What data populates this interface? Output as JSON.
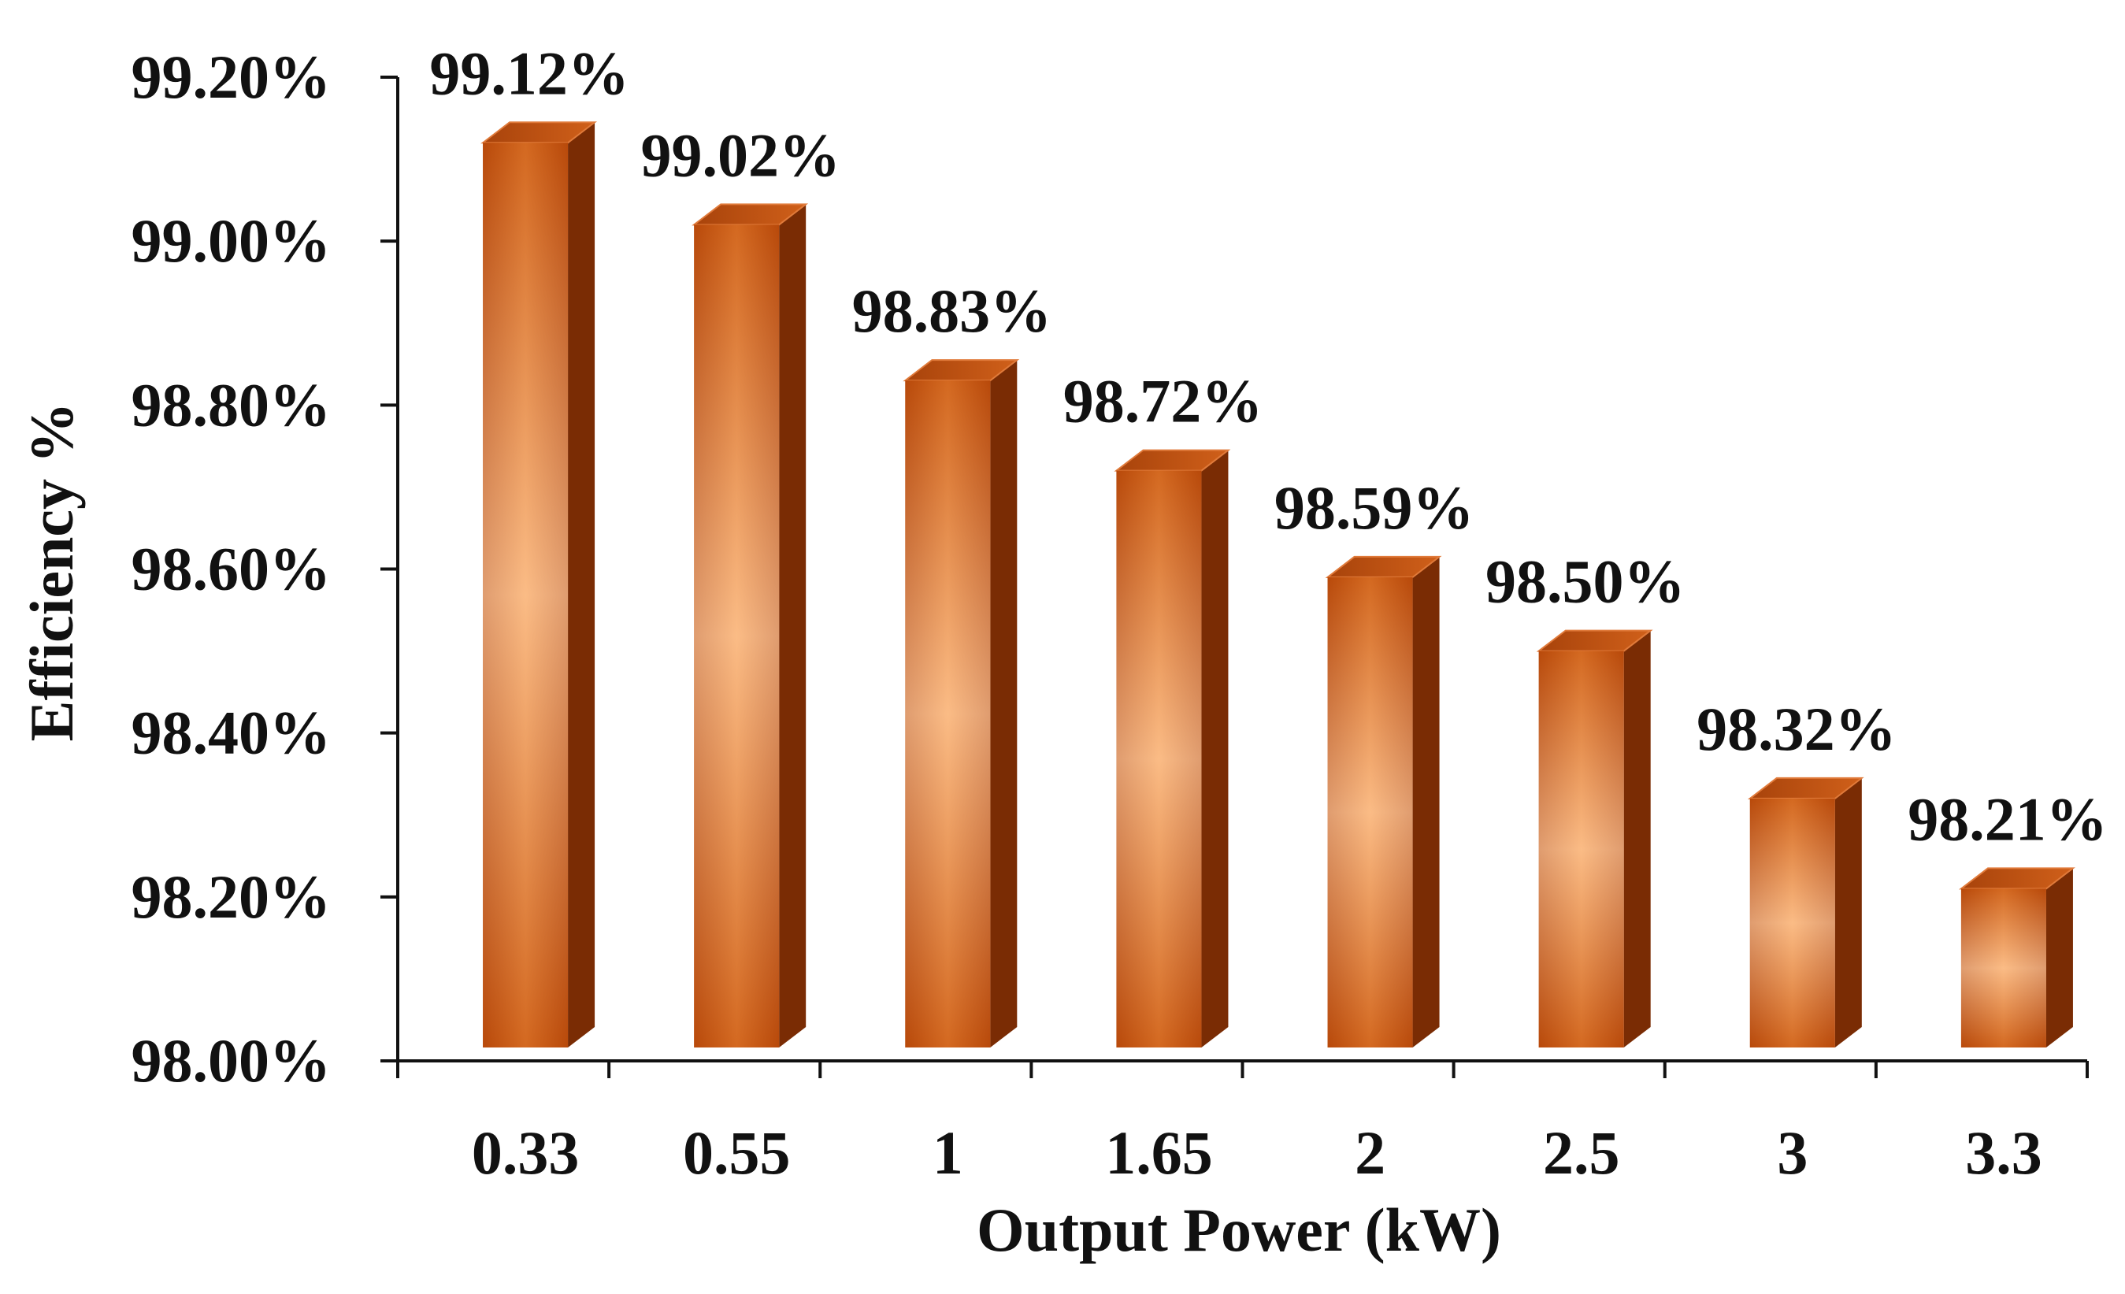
{
  "chart_data": {
    "type": "bar",
    "title": "",
    "xlabel": "Output Power (kW)",
    "ylabel": "Efficiency %",
    "categories": [
      "0.33",
      "0.55",
      "1",
      "1.65",
      "2",
      "2.5",
      "3",
      "3.3"
    ],
    "values": [
      99.12,
      99.02,
      98.83,
      98.72,
      98.59,
      98.5,
      98.32,
      98.21
    ],
    "data_labels": [
      "99.12%",
      "99.02%",
      "98.83%",
      "98.72%",
      "98.59%",
      "98.50%",
      "98.32%",
      "98.21%"
    ],
    "ylim": [
      98.0,
      99.2
    ],
    "yticks": [
      98.0,
      98.2,
      98.4,
      98.6,
      98.8,
      99.0,
      99.2
    ],
    "ytick_labels": [
      "98.00%",
      "98.20%",
      "98.40%",
      "98.60%",
      "98.80%",
      "99.00%",
      "99.20%"
    ],
    "grid": false,
    "legend": "none",
    "colors": {
      "bar_front_dark": "#b8490a",
      "bar_front_mid": "#f07f2c",
      "bar_front_light": "#ffd2a8",
      "bar_top": "#c8550e",
      "bar_side": "#7a2c04",
      "axis": "#111111"
    }
  }
}
